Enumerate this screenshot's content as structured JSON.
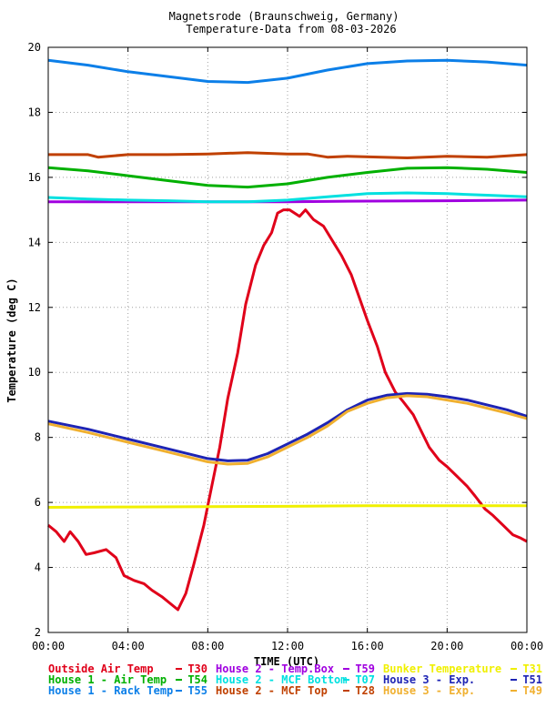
{
  "chart_data": {
    "type": "line",
    "title": "Magnetsrode (Braunschweig, Germany)",
    "subtitle": "Temperature-Data from 08-03-2026",
    "xlabel": "TIME (UTC)",
    "ylabel": "Temperature (deg C)",
    "xlim": [
      0,
      24
    ],
    "ylim": [
      2,
      20
    ],
    "xticks": [
      "00:00",
      "04:00",
      "08:00",
      "12:00",
      "16:00",
      "20:00",
      "00:00"
    ],
    "yticks": [
      "2",
      "4",
      "6",
      "8",
      "10",
      "12",
      "14",
      "16",
      "18",
      "20"
    ],
    "grid": true,
    "legend_position": "bottom",
    "series": [
      {
        "name": "Outside Air Temp",
        "code": "T30",
        "color": "#e0001a",
        "x": [
          0,
          0.4,
          0.8,
          1.1,
          1.5,
          1.9,
          2.3,
          2.9,
          3.4,
          3.8,
          4.3,
          4.8,
          5.2,
          5.7,
          6.1,
          6.5,
          6.9,
          7.3,
          7.8,
          8.2,
          8.6,
          9.0,
          9.5,
          9.9,
          10.4,
          10.8,
          11.2,
          11.5,
          11.8,
          12.1,
          12.6,
          12.9,
          13.3,
          13.8,
          14.3,
          14.7,
          15.2,
          15.6,
          16.0,
          16.5,
          16.9,
          17.4,
          17.8,
          18.3,
          18.7,
          19.1,
          19.6,
          20.0,
          20.5,
          21.0,
          21.4,
          21.9,
          22.3,
          22.8,
          23.3,
          23.7,
          24.0
        ],
        "values": [
          5.3,
          5.1,
          4.8,
          5.1,
          4.8,
          4.4,
          4.45,
          4.55,
          4.3,
          3.75,
          3.6,
          3.5,
          3.3,
          3.1,
          2.9,
          2.7,
          3.2,
          4.1,
          5.3,
          6.5,
          7.7,
          9.2,
          10.6,
          12.1,
          13.3,
          13.9,
          14.3,
          14.9,
          15.0,
          15.0,
          14.8,
          15.0,
          14.7,
          14.5,
          14.0,
          13.6,
          13.0,
          12.3,
          11.6,
          10.8,
          10.0,
          9.4,
          9.1,
          8.7,
          8.2,
          7.7,
          7.3,
          7.1,
          6.8,
          6.5,
          6.2,
          5.8,
          5.6,
          5.3,
          5.0,
          4.9,
          4.8
        ]
      },
      {
        "name": "House 1 - Air  Temp",
        "code": "T54",
        "color": "#00b000",
        "x": [
          0,
          2,
          4,
          6,
          8,
          10,
          12,
          14,
          16,
          18,
          20,
          22,
          24
        ],
        "values": [
          16.3,
          16.2,
          16.05,
          15.9,
          15.75,
          15.7,
          15.8,
          16.0,
          16.15,
          16.28,
          16.3,
          16.25,
          16.15
        ]
      },
      {
        "name": "House 1 - Rack Temp",
        "code": "T55",
        "color": "#0c7fe8",
        "x": [
          0,
          2,
          4,
          6,
          8,
          10,
          12,
          14,
          16,
          18,
          20,
          22,
          24
        ],
        "values": [
          19.6,
          19.45,
          19.25,
          19.1,
          18.95,
          18.92,
          19.05,
          19.3,
          19.5,
          19.58,
          19.6,
          19.55,
          19.45
        ]
      },
      {
        "name": "House 2 - Temp.Box",
        "code": "T59",
        "color": "#a000e0",
        "x": [
          0,
          4,
          8,
          12,
          16,
          20,
          24
        ],
        "values": [
          15.25,
          15.25,
          15.25,
          15.25,
          15.27,
          15.28,
          15.3
        ]
      },
      {
        "name": "House 2 - MCF Bottom",
        "code": "T07",
        "color": "#00e0e0",
        "x": [
          0,
          2,
          4,
          6,
          8,
          10,
          12,
          14,
          16,
          18,
          20,
          22,
          24
        ],
        "values": [
          15.38,
          15.33,
          15.3,
          15.28,
          15.25,
          15.25,
          15.3,
          15.4,
          15.5,
          15.52,
          15.5,
          15.45,
          15.4
        ]
      },
      {
        "name": "House 2 - MCF Top",
        "code": "T28",
        "color": "#c04000",
        "x": [
          0,
          2,
          2.5,
          4,
          6,
          8,
          10,
          12,
          13,
          14,
          15,
          18,
          20,
          22,
          24
        ],
        "values": [
          16.7,
          16.7,
          16.62,
          16.7,
          16.7,
          16.72,
          16.76,
          16.72,
          16.72,
          16.62,
          16.65,
          16.6,
          16.65,
          16.62,
          16.7
        ]
      },
      {
        "name": "Bunker Temperature",
        "code": "T31",
        "color": "#f0f000",
        "x": [
          0,
          4,
          8,
          12,
          16,
          20,
          24
        ],
        "values": [
          5.85,
          5.86,
          5.87,
          5.88,
          5.9,
          5.9,
          5.9
        ]
      },
      {
        "name": "House 3 - Exp.",
        "code": "T51",
        "color": "#1e24b4",
        "x": [
          0,
          2,
          4,
          6,
          8,
          9,
          10,
          11,
          12,
          13,
          14,
          15,
          16,
          17,
          18,
          19,
          20,
          21,
          22,
          23,
          24
        ],
        "values": [
          8.5,
          8.25,
          7.95,
          7.65,
          7.35,
          7.28,
          7.3,
          7.5,
          7.8,
          8.1,
          8.45,
          8.85,
          9.15,
          9.3,
          9.35,
          9.33,
          9.25,
          9.15,
          9.0,
          8.85,
          8.65
        ]
      },
      {
        "name": "House 3 - Exp.",
        "code": "T49",
        "color": "#f0b030",
        "x": [
          0,
          2,
          4,
          6,
          8,
          9,
          10,
          11,
          12,
          13,
          14,
          15,
          16,
          17,
          18,
          19,
          20,
          21,
          22,
          23,
          24
        ],
        "values": [
          8.42,
          8.15,
          7.85,
          7.55,
          7.25,
          7.18,
          7.2,
          7.4,
          7.7,
          8.0,
          8.35,
          8.8,
          9.05,
          9.22,
          9.28,
          9.25,
          9.15,
          9.05,
          8.9,
          8.75,
          8.58
        ]
      }
    ]
  }
}
